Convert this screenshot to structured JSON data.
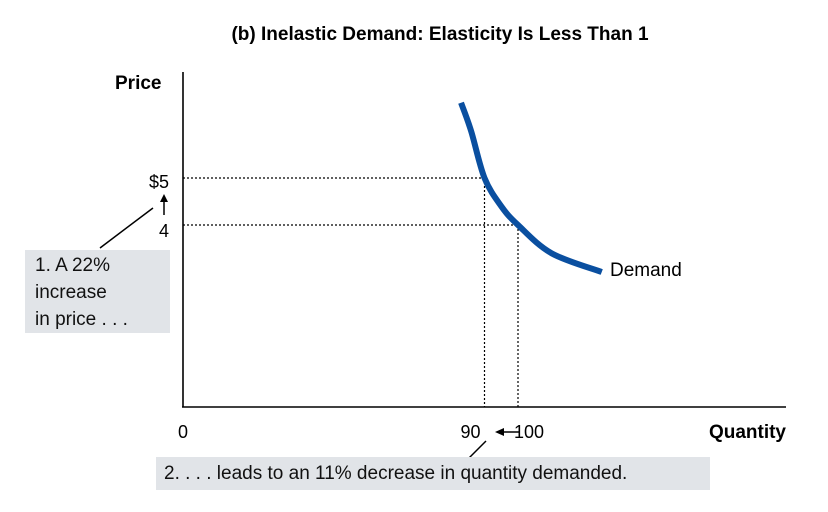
{
  "chart_data": {
    "type": "line",
    "title": "(b) Inelastic Demand: Elasticity Is Less Than 1",
    "xlabel": "Quantity",
    "ylabel": "Price",
    "x_ticks": [
      {
        "value": 0,
        "label": "0"
      },
      {
        "value": 90,
        "label": "90"
      },
      {
        "value": 100,
        "label": "100"
      }
    ],
    "y_ticks": [
      {
        "value": 5,
        "label": "$5"
      },
      {
        "value": 4,
        "label": "4"
      }
    ],
    "series": [
      {
        "name": "Demand",
        "color": "#0a4fa0",
        "points": [
          [
            83,
            6.6
          ],
          [
            86,
            6.0
          ],
          [
            90,
            5.0
          ],
          [
            95,
            4.4
          ],
          [
            100,
            4.0
          ],
          [
            110,
            3.4
          ],
          [
            125,
            3.0
          ]
        ]
      }
    ],
    "highlighted_points": [
      [
        90,
        5
      ],
      [
        100,
        4
      ]
    ],
    "annotations": [
      {
        "text": "1. A 22%\nincrease\nin price . . ."
      },
      {
        "text": "2. . . . leads to an 11% decrease in quantity demanded."
      }
    ],
    "grid": false,
    "legend": "none"
  }
}
